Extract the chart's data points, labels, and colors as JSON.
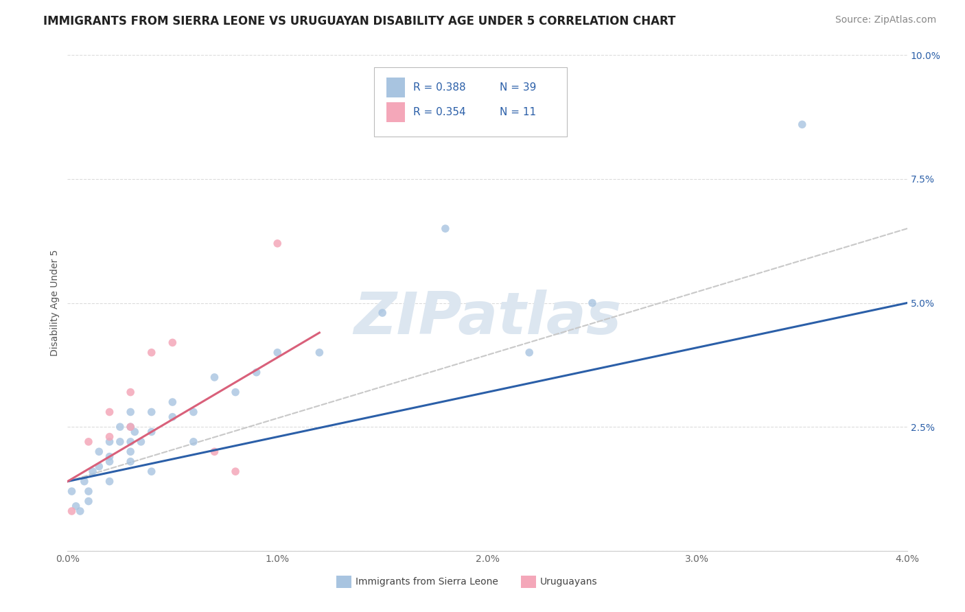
{
  "title": "IMMIGRANTS FROM SIERRA LEONE VS URUGUAYAN DISABILITY AGE UNDER 5 CORRELATION CHART",
  "source": "Source: ZipAtlas.com",
  "ylabel": "Disability Age Under 5",
  "xlim": [
    0.0,
    0.04
  ],
  "ylim": [
    0.0,
    0.1
  ],
  "xtick_labels": [
    "0.0%",
    "1.0%",
    "2.0%",
    "3.0%",
    "4.0%"
  ],
  "xtick_values": [
    0.0,
    0.01,
    0.02,
    0.03,
    0.04
  ],
  "ytick_labels": [
    "",
    "2.5%",
    "5.0%",
    "7.5%",
    "10.0%"
  ],
  "ytick_values": [
    0.0,
    0.025,
    0.05,
    0.075,
    0.1
  ],
  "legend_labels": [
    "Immigrants from Sierra Leone",
    "Uruguayans"
  ],
  "r_blue": 0.388,
  "n_blue": 39,
  "r_pink": 0.354,
  "n_pink": 11,
  "blue_color": "#a8c4e0",
  "pink_color": "#f4a7b9",
  "blue_line_color": "#2b5fa8",
  "pink_line_color": "#d9607a",
  "dashed_line_color": "#c8c8c8",
  "watermark_color": "#dce6f0",
  "background_color": "#ffffff",
  "grid_color": "#d8d8d8",
  "blue_scatter_x": [
    0.0002,
    0.0004,
    0.0006,
    0.0008,
    0.001,
    0.001,
    0.0012,
    0.0015,
    0.0015,
    0.002,
    0.002,
    0.002,
    0.002,
    0.0025,
    0.0025,
    0.003,
    0.003,
    0.003,
    0.003,
    0.003,
    0.0032,
    0.0035,
    0.004,
    0.004,
    0.004,
    0.005,
    0.005,
    0.006,
    0.006,
    0.007,
    0.008,
    0.009,
    0.01,
    0.012,
    0.015,
    0.018,
    0.022,
    0.025,
    0.035
  ],
  "blue_scatter_y": [
    0.012,
    0.009,
    0.008,
    0.014,
    0.012,
    0.01,
    0.016,
    0.02,
    0.017,
    0.019,
    0.022,
    0.018,
    0.014,
    0.022,
    0.025,
    0.022,
    0.02,
    0.018,
    0.025,
    0.028,
    0.024,
    0.022,
    0.028,
    0.024,
    0.016,
    0.03,
    0.027,
    0.028,
    0.022,
    0.035,
    0.032,
    0.036,
    0.04,
    0.04,
    0.048,
    0.065,
    0.04,
    0.05,
    0.086
  ],
  "pink_scatter_x": [
    0.0002,
    0.001,
    0.002,
    0.002,
    0.003,
    0.003,
    0.004,
    0.005,
    0.007,
    0.008,
    0.01
  ],
  "pink_scatter_y": [
    0.008,
    0.022,
    0.023,
    0.028,
    0.025,
    0.032,
    0.04,
    0.042,
    0.02,
    0.016,
    0.062
  ],
  "blue_line_x": [
    0.0,
    0.04
  ],
  "blue_line_y": [
    0.014,
    0.05
  ],
  "dashed_line_x": [
    0.0,
    0.04
  ],
  "dashed_line_y": [
    0.014,
    0.065
  ],
  "pink_line_x": [
    0.0,
    0.012
  ],
  "pink_line_y": [
    0.014,
    0.044
  ],
  "title_fontsize": 12,
  "tick_fontsize": 10,
  "legend_fontsize": 10,
  "source_fontsize": 10
}
